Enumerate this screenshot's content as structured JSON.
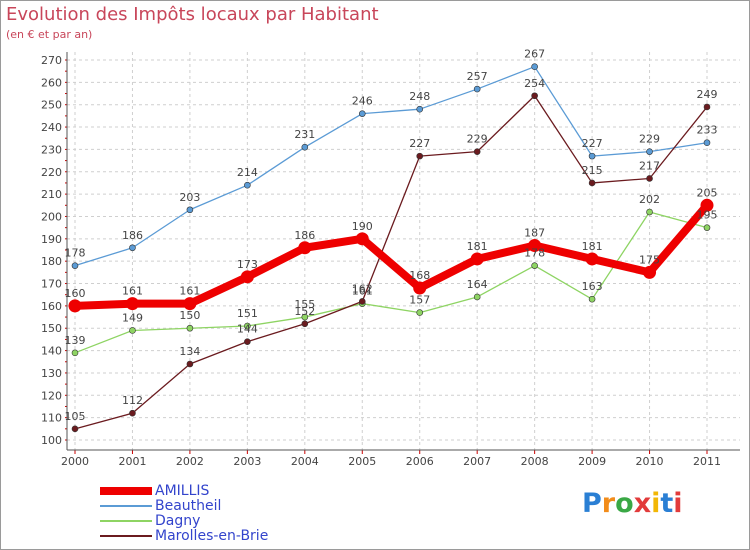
{
  "title": "Evolution des Impôts locaux par Habitant",
  "subtitle": "(en € et par an)",
  "logo_text": "Proxiti",
  "colors": {
    "grid": "#cfcfcf",
    "axis": "#555555",
    "tick_red": "#cc0000",
    "label": "#444444",
    "title": "#c8465a",
    "legend_text": "#3344cc"
  },
  "chart_data": {
    "type": "line",
    "title": "Evolution des Impôts locaux par Habitant",
    "subtitle": "(en € et par an)",
    "xlabel": "",
    "ylabel": "",
    "x": [
      "2000",
      "2001",
      "2002",
      "2003",
      "2004",
      "2005",
      "2006",
      "2007",
      "2008",
      "2009",
      "2010",
      "2011"
    ],
    "ylim": [
      100,
      270
    ],
    "yticks": [
      100,
      110,
      120,
      130,
      140,
      150,
      160,
      170,
      180,
      190,
      200,
      210,
      220,
      230,
      240,
      250,
      260,
      270
    ],
    "grid": true,
    "legend_position": "bottom-left",
    "series": [
      {
        "name": "AMILLIS",
        "color": "#ee0000",
        "values": [
          160,
          161,
          161,
          173,
          186,
          190,
          168,
          181,
          187,
          181,
          175,
          205
        ]
      },
      {
        "name": "Beautheil",
        "color": "#5b9bd5",
        "values": [
          178,
          186,
          203,
          214,
          231,
          246,
          248,
          257,
          267,
          227,
          229,
          233
        ]
      },
      {
        "name": "Dagny",
        "color": "#8ed463",
        "values": [
          139,
          149,
          150,
          151,
          155,
          161,
          157,
          164,
          178,
          163,
          202,
          195
        ]
      },
      {
        "name": "Marolles-en-Brie",
        "color": "#6b1b1f",
        "values": [
          105,
          112,
          134,
          144,
          152,
          162,
          227,
          229,
          254,
          215,
          217,
          249
        ]
      }
    ]
  }
}
